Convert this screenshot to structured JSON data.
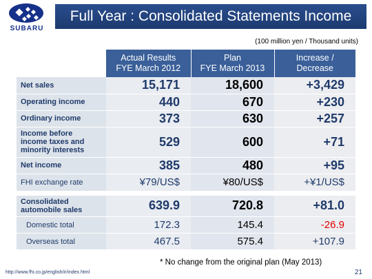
{
  "brand": "SUBARU",
  "title": "Full Year : Consolidated Statements Income",
  "unit_note": "(100 million yen / Thousand units)",
  "columns": [
    {
      "line1": "Actual Results",
      "line2": "FYE March 2012"
    },
    {
      "line1": "Plan",
      "line2": "FYE March 2013"
    },
    {
      "line1": "Increase /",
      "line2": "Decrease"
    }
  ],
  "rows": [
    {
      "label": "Net sales",
      "values": [
        "15,171",
        "18,600",
        "+3,429"
      ]
    },
    {
      "label": "Operating income",
      "values": [
        "440",
        "670",
        "+230"
      ]
    },
    {
      "label": "Ordinary income",
      "values": [
        "373",
        "630",
        "+257"
      ]
    },
    {
      "label_lines": [
        "Income before",
        "income taxes and",
        "minority interests"
      ],
      "values": [
        "529",
        "600",
        "+71"
      ]
    },
    {
      "label": "Net income",
      "values": [
        "385",
        "480",
        "+95"
      ]
    },
    {
      "label": "FHI exchange rate",
      "values": [
        "¥79/US$",
        "¥80/US$",
        "+¥1/US$"
      ]
    },
    {
      "label_lines": [
        "Consolidated",
        "automobile sales"
      ],
      "values": [
        "639.9",
        "720.8",
        "+81.0"
      ]
    },
    {
      "label": "Domestic total",
      "values": [
        "172.3",
        "145.4",
        "-26.9"
      ]
    },
    {
      "label": "Overseas total",
      "values": [
        "467.5",
        "575.4",
        "+107.9"
      ]
    }
  ],
  "footnote": "* No change from the original plan (May 2013)",
  "url": "http://www.fhi.co.jp/english/ir/index.html",
  "page_number": "21"
}
